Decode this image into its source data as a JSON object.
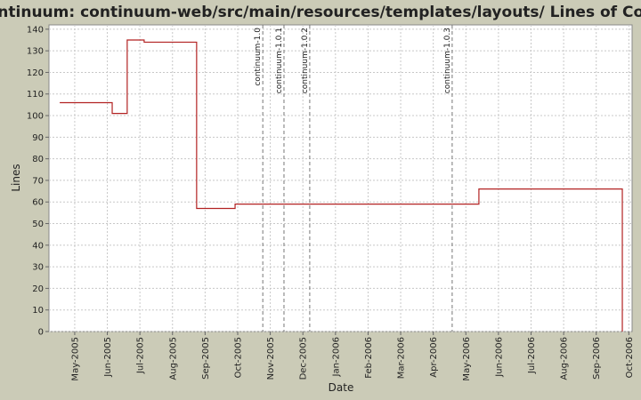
{
  "chart_data": {
    "type": "line",
    "step": true,
    "title": "Continuum: continuum-web/src/main/resources/templates/layouts/ Lines of Code",
    "xlabel": "Date",
    "ylabel": "Lines",
    "x": [
      -0.46,
      1.15,
      1.61,
      2.13,
      3.74,
      4.92,
      12.4,
      16.8
    ],
    "values": [
      106,
      101,
      135,
      134,
      57,
      59,
      66,
      0
    ],
    "color": "#b22222",
    "xlim": [
      -0.79,
      17.1
    ],
    "xticks": [
      {
        "value": 0,
        "label": "May-2005"
      },
      {
        "value": 1,
        "label": "Jun-2005"
      },
      {
        "value": 2,
        "label": "Jul-2005"
      },
      {
        "value": 3,
        "label": "Aug-2005"
      },
      {
        "value": 4,
        "label": "Sep-2005"
      },
      {
        "value": 5,
        "label": "Oct-2005"
      },
      {
        "value": 6,
        "label": "Nov-2005"
      },
      {
        "value": 7,
        "label": "Dec-2005"
      },
      {
        "value": 8,
        "label": "Jan-2006"
      },
      {
        "value": 9,
        "label": "Feb-2006"
      },
      {
        "value": 10,
        "label": "Mar-2006"
      },
      {
        "value": 11,
        "label": "Apr-2006"
      },
      {
        "value": 12,
        "label": "May-2006"
      },
      {
        "value": 13,
        "label": "Jun-2006"
      },
      {
        "value": 14,
        "label": "Jul-2006"
      },
      {
        "value": 15,
        "label": "Aug-2006"
      },
      {
        "value": 16,
        "label": "Sep-2006"
      },
      {
        "value": 17,
        "label": "Oct-2006"
      }
    ],
    "ylim": [
      0,
      142
    ],
    "yticks": [
      0,
      10,
      20,
      30,
      40,
      50,
      60,
      70,
      80,
      90,
      100,
      110,
      120,
      130,
      140
    ],
    "grid": true,
    "markers": [
      {
        "x": 5.77,
        "label": "continuum-1.0"
      },
      {
        "x": 6.42,
        "label": "continuum-1.0.1"
      },
      {
        "x": 7.21,
        "label": "continuum-1.0.2"
      },
      {
        "x": 11.58,
        "label": "continuum-1.0.3"
      }
    ]
  }
}
